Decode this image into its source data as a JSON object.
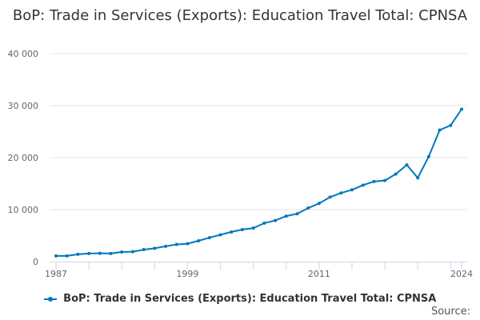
{
  "chart_data": {
    "type": "line",
    "title": "BoP: Trade in Services (Exports): Education Travel Total: CPNSA",
    "xlabel": "",
    "ylabel": "",
    "x": [
      1987,
      1988,
      1989,
      1990,
      1991,
      1992,
      1993,
      1994,
      1995,
      1996,
      1997,
      1998,
      1999,
      2000,
      2001,
      2002,
      2003,
      2004,
      2005,
      2006,
      2007,
      2008,
      2009,
      2010,
      2011,
      2012,
      2013,
      2014,
      2015,
      2016,
      2017,
      2018,
      2019,
      2020,
      2021,
      2022,
      2023,
      2024
    ],
    "series": [
      {
        "name": "BoP: Trade in Services (Exports): Education Travel Total: CPNSA",
        "color": "#0077bd",
        "values": [
          1100,
          1100,
          1400,
          1550,
          1600,
          1550,
          1850,
          1900,
          2300,
          2550,
          2950,
          3300,
          3450,
          4000,
          4600,
          5150,
          5700,
          6150,
          6450,
          7400,
          7900,
          8750,
          9200,
          10300,
          11200,
          12400,
          13200,
          13800,
          14700,
          15400,
          15600,
          16850,
          18600,
          16100,
          20200,
          25300,
          26200,
          29300
        ]
      }
    ],
    "ylim": [
      0,
      40000
    ],
    "y_ticks": [
      "0",
      "10 000",
      "20 000",
      "30 000",
      "40 000"
    ],
    "x_tick_labels": [
      "1987",
      "1999",
      "2011",
      "2024"
    ],
    "grid": true,
    "legend_position": "bottom"
  },
  "source_label": "Source:"
}
